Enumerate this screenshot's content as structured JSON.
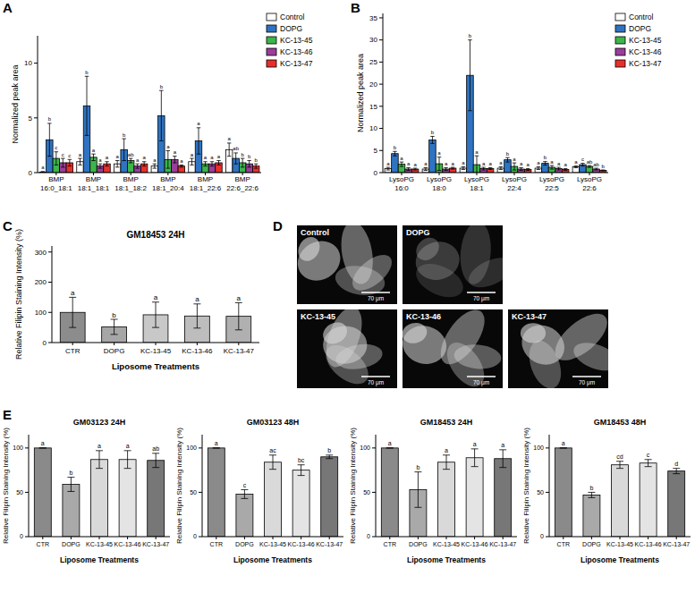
{
  "chart_data": [
    {
      "type": "bar",
      "y_label": "Normalized peak area",
      "legend": "right",
      "categories": [
        "BMP 16:0_18:1",
        "BMP 18:1_18:1",
        "BMP 18:1_18:2",
        "BMP 18:1_20:4",
        "BMP 18:1_22:6",
        "BMP 22:6_22:6"
      ],
      "ylim": [
        0,
        12.5
      ],
      "yticks": [
        0,
        5,
        10
      ],
      "series": [
        {
          "name": "Control",
          "color": "#ffffff",
          "values": [
            0.05,
            1.0,
            0.8,
            0.6,
            1.0,
            2.1
          ],
          "errors": [
            0.05,
            0.3,
            0.3,
            0.2,
            0.3,
            0.6
          ],
          "letters": [
            "a",
            "a",
            "a",
            "a",
            "a",
            "a"
          ]
        },
        {
          "name": "DOPG",
          "color": "#2f73c2",
          "values": [
            3.0,
            6.1,
            2.1,
            5.2,
            2.9,
            1.3
          ],
          "errors": [
            1.5,
            2.7,
            1.0,
            2.3,
            1.2,
            0.5
          ],
          "letters": [
            "b",
            "b",
            "b",
            "b",
            "a",
            "ab"
          ]
        },
        {
          "name": "KC-13-45",
          "color": "#3cb54a",
          "values": [
            1.3,
            1.4,
            1.1,
            1.2,
            0.8,
            0.9
          ],
          "errors": [
            0.6,
            0.3,
            0.2,
            0.8,
            0.2,
            0.4
          ],
          "letters": [
            "c",
            "a",
            "ab",
            "a",
            "a",
            "b"
          ]
        },
        {
          "name": "KC-13-46",
          "color": "#9b3d9b",
          "values": [
            0.9,
            0.6,
            0.6,
            1.2,
            0.8,
            0.8
          ],
          "errors": [
            0.4,
            0.2,
            0.2,
            0.3,
            0.2,
            0.3
          ],
          "letters": [
            "c",
            "a",
            "a",
            "a",
            "a",
            "b"
          ]
        },
        {
          "name": "KC-13-47",
          "color": "#e8302a",
          "values": [
            0.9,
            0.8,
            0.8,
            0.6,
            0.9,
            0.6
          ],
          "errors": [
            0.3,
            0.2,
            0.2,
            0.1,
            0.2,
            0.2
          ],
          "letters": [
            "c",
            "a",
            "a",
            "a",
            "a",
            "b"
          ]
        }
      ]
    },
    {
      "type": "bar",
      "y_label": "Normalized peak area",
      "legend": "right",
      "categories": [
        "LysoPG 16:0",
        "LysoPG 18:0",
        "LysoPG 18:1",
        "LysoPG 22:4",
        "LysoPG 22:5",
        "LysoPG 22:6"
      ],
      "ylim": [
        0,
        36
      ],
      "yticks": [
        0,
        5,
        10,
        15,
        20,
        25,
        30,
        35
      ],
      "series": [
        {
          "name": "Control",
          "color": "#ffffff",
          "values": [
            0.9,
            0.8,
            1.0,
            1.0,
            1.0,
            1.3
          ],
          "errors": [
            0.3,
            0.3,
            0.3,
            0.3,
            0.3,
            0.2
          ],
          "letters": [
            "a",
            "a",
            "a",
            "a",
            "a",
            "a"
          ]
        },
        {
          "name": "DOPG",
          "color": "#2f73c2",
          "values": [
            4.3,
            7.4,
            22.0,
            2.9,
            2.1,
            1.8
          ],
          "errors": [
            0.5,
            0.8,
            8.0,
            0.5,
            0.4,
            0.3
          ],
          "letters": [
            "b",
            "b",
            "b",
            "b",
            "b",
            "c"
          ]
        },
        {
          "name": "KC-13-45",
          "color": "#3cb54a",
          "values": [
            1.9,
            2.0,
            1.8,
            1.4,
            1.2,
            1.4
          ],
          "errors": [
            0.5,
            1.5,
            2.0,
            0.8,
            0.4,
            0.2
          ],
          "letters": [
            "a",
            "a",
            "a",
            "a",
            "a",
            "ab"
          ]
        },
        {
          "name": "KC-13-46",
          "color": "#9b3d9b",
          "values": [
            0.8,
            0.8,
            0.9,
            0.8,
            0.9,
            0.8
          ],
          "errors": [
            0.3,
            0.3,
            0.3,
            0.3,
            0.3,
            0.2
          ],
          "letters": [
            "a",
            "a",
            "a",
            "a",
            "a",
            "ab"
          ]
        },
        {
          "name": "KC-13-47",
          "color": "#e8302a",
          "values": [
            0.8,
            1.0,
            0.9,
            0.7,
            0.7,
            0.5
          ],
          "errors": [
            0.2,
            0.2,
            0.2,
            0.2,
            0.2,
            0.1
          ],
          "letters": [
            "a",
            "a",
            "a",
            "a",
            "a",
            "b"
          ]
        }
      ]
    },
    {
      "type": "bar",
      "title": "GM18453 24H",
      "y_label": "Relative Filipin Staining Intensity (%)",
      "x_label": "Liposome Treatments",
      "categories": [
        "CTR",
        "DOPG",
        "KC-13-45",
        "KC-13-46",
        "KC-13-47"
      ],
      "ylim": [
        0,
        320
      ],
      "yticks": [
        0,
        100,
        200,
        300
      ],
      "values": [
        100,
        52,
        92,
        88,
        87
      ],
      "errors": [
        50,
        25,
        42,
        40,
        45
      ],
      "letters": [
        "a",
        "b",
        "a",
        "a",
        "a"
      ],
      "colors": [
        "#8c8c8c",
        "#a6a6a6",
        "#c8c8c8",
        "#bdbdbd",
        "#b0b0b0"
      ]
    },
    {
      "type": "bar",
      "title": "GM03123 24H",
      "y_label": "Relative Filipin Staining Intensity (%)",
      "x_label": "Liposome Treatments",
      "categories": [
        "CTR",
        "DOPG",
        "KC-13-45",
        "KC-13-46",
        "KC-13-47"
      ],
      "ylim": [
        0,
        115
      ],
      "yticks": [
        0,
        50,
        100
      ],
      "values": [
        100,
        59,
        87,
        87,
        86
      ],
      "errors": [
        0,
        8,
        10,
        10,
        8
      ],
      "letters": [
        "a",
        "b",
        "a",
        "a",
        "ab"
      ],
      "colors": [
        "#8a8a8a",
        "#a9a9a9",
        "#d9d9d9",
        "#e4e4e4",
        "#777777"
      ]
    },
    {
      "type": "bar",
      "title": "GM03123 48H",
      "y_label": "Relative Filipin Staining Intensity (%)",
      "x_label": "Liposome Treatments",
      "categories": [
        "CTR",
        "DOPG",
        "KC-13-45",
        "KC-13-46",
        "KC-13-47"
      ],
      "ylim": [
        0,
        115
      ],
      "yticks": [
        0,
        50,
        100
      ],
      "values": [
        100,
        48,
        84,
        75,
        90
      ],
      "errors": [
        0,
        5,
        8,
        6,
        2
      ],
      "letters": [
        "a",
        "c",
        "ac",
        "bc",
        "b"
      ],
      "colors": [
        "#8a8a8a",
        "#a9a9a9",
        "#d9d9d9",
        "#e4e4e4",
        "#777777"
      ]
    },
    {
      "type": "bar",
      "title": "GM18453 24H",
      "y_label": "Relative Filipin Staining Intensity (%)",
      "x_label": "Liposome Treatments",
      "categories": [
        "CTR",
        "DOPG",
        "KC-13-45",
        "KC-13-46",
        "KC-13-47"
      ],
      "ylim": [
        0,
        115
      ],
      "yticks": [
        0,
        50,
        100
      ],
      "values": [
        100,
        53,
        84,
        89,
        88
      ],
      "errors": [
        0,
        20,
        8,
        10,
        10
      ],
      "letters": [
        "a",
        "b",
        "a",
        "a",
        "a"
      ],
      "colors": [
        "#8a8a8a",
        "#a9a9a9",
        "#d9d9d9",
        "#e4e4e4",
        "#777777"
      ]
    },
    {
      "type": "bar",
      "title": "GM18453 48H",
      "y_label": "Relative Filipin Staining Intensity (%)",
      "x_label": "Liposome Treatments",
      "categories": [
        "CTR",
        "DOPG",
        "KC-13-45",
        "KC-13-46",
        "KC-13-47"
      ],
      "ylim": [
        0,
        115
      ],
      "yticks": [
        0,
        50,
        100
      ],
      "values": [
        100,
        47,
        81,
        83,
        74
      ],
      "errors": [
        0,
        3,
        4,
        4,
        3
      ],
      "letters": [
        "a",
        "b",
        "cd",
        "c",
        "d"
      ],
      "colors": [
        "#8a8a8a",
        "#a9a9a9",
        "#d9d9d9",
        "#e4e4e4",
        "#777777"
      ]
    }
  ],
  "figure": {
    "panel_labels": [
      "A",
      "B",
      "C",
      "D",
      "E"
    ],
    "micrographs": [
      {
        "label": "Control",
        "scale_bar": "70 μm"
      },
      {
        "label": "DOPG",
        "scale_bar": "70 μm"
      },
      {
        "label": "KC-13-45",
        "scale_bar": "70 μm"
      },
      {
        "label": "KC-13-46",
        "scale_bar": "70 μm"
      },
      {
        "label": "KC-13-47",
        "scale_bar": "70 μm"
      }
    ]
  }
}
